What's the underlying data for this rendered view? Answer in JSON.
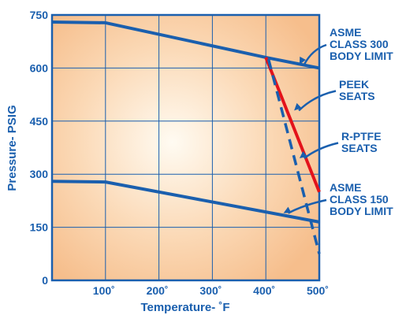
{
  "chart_data": {
    "type": "line",
    "xlabel": "Temperature- ˚F",
    "ylabel": "Pressure- PSIG",
    "xlim": [
      0,
      500
    ],
    "ylim": [
      0,
      750
    ],
    "x_ticks": [
      {
        "value": 100,
        "label": "100˚"
      },
      {
        "value": 200,
        "label": "200˚"
      },
      {
        "value": 300,
        "label": "300˚"
      },
      {
        "value": 400,
        "label": "400˚"
      },
      {
        "value": 500,
        "label": "500˚"
      }
    ],
    "y_ticks": [
      {
        "value": 0,
        "label": "0"
      },
      {
        "value": 150,
        "label": "150"
      },
      {
        "value": 300,
        "label": "300"
      },
      {
        "value": 450,
        "label": "450"
      },
      {
        "value": 600,
        "label": "600"
      },
      {
        "value": 750,
        "label": "750"
      }
    ],
    "grid": true,
    "series": [
      {
        "name": "ASME CLASS 300 BODY LIMIT",
        "style": "solid",
        "color": "#1a5fae",
        "points": [
          [
            0,
            730
          ],
          [
            100,
            728
          ],
          [
            400,
            630
          ],
          [
            500,
            600
          ]
        ]
      },
      {
        "name": "ASME CLASS 150 BODY LIMIT",
        "style": "solid",
        "color": "#1a5fae",
        "points": [
          [
            0,
            280
          ],
          [
            100,
            278
          ],
          [
            500,
            165
          ]
        ]
      },
      {
        "name": "PEEK SEATS",
        "style": "solid",
        "color": "#e3131b",
        "points": [
          [
            400,
            630
          ],
          [
            500,
            250
          ]
        ]
      },
      {
        "name": "R-PTFE SEATS",
        "style": "dashed",
        "color": "#1a5fae",
        "points": [
          [
            405,
            625
          ],
          [
            500,
            75
          ]
        ]
      }
    ],
    "annotations": [
      {
        "lines": [
          "ASME",
          "CLASS 300",
          "BODY LIMIT"
        ],
        "target": [
          460,
          610
        ]
      },
      {
        "lines": [
          "PEEK",
          "SEATS"
        ],
        "target": [
          450,
          480
        ]
      },
      {
        "lines": [
          "R-PTFE",
          "SEATS"
        ],
        "target": [
          460,
          345
        ]
      },
      {
        "lines": [
          "ASME",
          "CLASS 150",
          "BODY LIMIT"
        ],
        "target": [
          430,
          190
        ]
      }
    ]
  },
  "colors": {
    "plot_center": "#fffbf2",
    "plot_edge": "#f6be8c",
    "axis_blue": "#1a5fae",
    "grid": "#1a5fae"
  }
}
